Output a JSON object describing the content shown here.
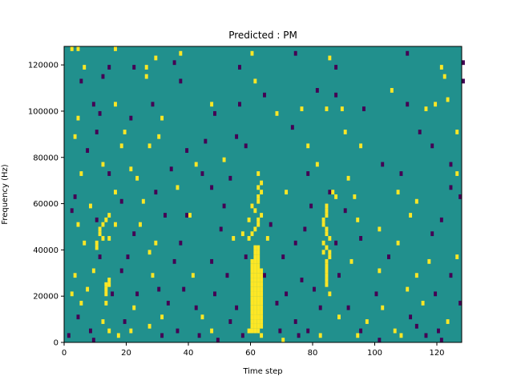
{
  "chart_data": {
    "type": "heatmap",
    "title": "Predicted : PM",
    "xlabel": "Time step",
    "ylabel": "Frequency (Hz)",
    "xlim": [
      0,
      128
    ],
    "ylim": [
      0,
      128000
    ],
    "xticks": [
      0,
      20,
      40,
      60,
      80,
      100,
      120
    ],
    "yticks": [
      0,
      20000,
      40000,
      60000,
      80000,
      100000,
      120000
    ],
    "xtick_labels": [
      "0",
      "20",
      "40",
      "60",
      "80",
      "100",
      "120"
    ],
    "ytick_labels": [
      "0",
      "20000",
      "40000",
      "60000",
      "80000",
      "100000",
      "120000"
    ],
    "grid": false,
    "legend": "none",
    "n_rows": 64,
    "n_cols": 128,
    "value_levels": [
      -1,
      0,
      1
    ],
    "colors": {
      "-1": "#440154",
      "0": "#21908d",
      "1": "#fde725"
    },
    "cells": [
      [
        2,
        63,
        1
      ],
      [
        4,
        63,
        1
      ],
      [
        16,
        63,
        1
      ],
      [
        37,
        62,
        1
      ],
      [
        60,
        62,
        1
      ],
      [
        74,
        62,
        -1
      ],
      [
        85,
        61,
        1
      ],
      [
        110,
        62,
        -1
      ],
      [
        6,
        59,
        1
      ],
      [
        14,
        59,
        -1
      ],
      [
        22,
        59,
        -1
      ],
      [
        26,
        59,
        1
      ],
      [
        29,
        61,
        1
      ],
      [
        35,
        60,
        -1
      ],
      [
        56,
        59,
        -1
      ],
      [
        87,
        59,
        -1
      ],
      [
        121,
        59,
        1
      ],
      [
        128,
        60,
        -1
      ],
      [
        5,
        56,
        -1
      ],
      [
        12,
        57,
        -1
      ],
      [
        26,
        57,
        1
      ],
      [
        37,
        56,
        -1
      ],
      [
        61,
        56,
        1
      ],
      [
        81,
        54,
        -1
      ],
      [
        87,
        53,
        -1
      ],
      [
        105,
        54,
        1
      ],
      [
        122,
        57,
        1
      ],
      [
        128,
        56,
        -1
      ],
      [
        9,
        51,
        -1
      ],
      [
        16,
        51,
        1
      ],
      [
        28,
        51,
        -1
      ],
      [
        47,
        51,
        1
      ],
      [
        56,
        51,
        -1
      ],
      [
        76,
        50,
        1
      ],
      [
        84,
        50,
        1
      ],
      [
        96,
        50,
        -1
      ],
      [
        116,
        50,
        1
      ],
      [
        123,
        52,
        1
      ],
      [
        4,
        48,
        1
      ],
      [
        11,
        49,
        -1
      ],
      [
        21,
        48,
        -1
      ],
      [
        31,
        48,
        1
      ],
      [
        48,
        49,
        -1
      ],
      [
        64,
        53,
        -1
      ],
      [
        68,
        49,
        1
      ],
      [
        89,
        50,
        1
      ],
      [
        110,
        51,
        -1
      ],
      [
        119,
        51,
        1
      ],
      [
        3,
        44,
        1
      ],
      [
        10,
        45,
        -1
      ],
      [
        19,
        45,
        1
      ],
      [
        30,
        44,
        1
      ],
      [
        45,
        43,
        -1
      ],
      [
        55,
        44,
        -1
      ],
      [
        73,
        46,
        -1
      ],
      [
        90,
        45,
        1
      ],
      [
        114,
        45,
        -1
      ],
      [
        126,
        45,
        1
      ],
      [
        7,
        41,
        -1
      ],
      [
        18,
        42,
        1
      ],
      [
        27,
        42,
        1
      ],
      [
        39,
        41,
        -1
      ],
      [
        58,
        42,
        -1
      ],
      [
        78,
        42,
        1
      ],
      [
        95,
        42,
        1
      ],
      [
        118,
        42,
        -1
      ],
      [
        12,
        38,
        1
      ],
      [
        21,
        37,
        1
      ],
      [
        34,
        37,
        -1
      ],
      [
        42,
        38,
        1
      ],
      [
        51,
        39,
        1
      ],
      [
        81,
        38,
        1
      ],
      [
        102,
        38,
        -1
      ],
      [
        124,
        38,
        -1
      ],
      [
        5,
        36,
        1
      ],
      [
        14,
        36,
        -1
      ],
      [
        23,
        35,
        1
      ],
      [
        44,
        36,
        -1
      ],
      [
        53,
        35,
        -1
      ],
      [
        62,
        36,
        1
      ],
      [
        78,
        36,
        -1
      ],
      [
        91,
        35,
        1
      ],
      [
        108,
        36,
        -1
      ],
      [
        126,
        36,
        1
      ],
      [
        3,
        31,
        -1
      ],
      [
        16,
        32,
        1
      ],
      [
        29,
        32,
        -1
      ],
      [
        36,
        33,
        1
      ],
      [
        47,
        33,
        -1
      ],
      [
        71,
        32,
        1
      ],
      [
        85,
        32,
        -1
      ],
      [
        93,
        31,
        1
      ],
      [
        107,
        32,
        1
      ],
      [
        124,
        33,
        -1
      ],
      [
        2,
        28,
        -1
      ],
      [
        8,
        29,
        1
      ],
      [
        18,
        30,
        -1
      ],
      [
        25,
        30,
        1
      ],
      [
        39,
        27,
        -1
      ],
      [
        51,
        29,
        -1
      ],
      [
        59,
        26,
        1
      ],
      [
        79,
        29,
        -1
      ],
      [
        90,
        28,
        -1
      ],
      [
        113,
        30,
        1
      ],
      [
        127,
        31,
        -1
      ],
      [
        4,
        25,
        1
      ],
      [
        10,
        26,
        -1
      ],
      [
        16,
        25,
        1
      ],
      [
        24,
        25,
        1
      ],
      [
        32,
        27,
        -1
      ],
      [
        40,
        27,
        1
      ],
      [
        50,
        24,
        -1
      ],
      [
        57,
        23,
        1
      ],
      [
        66,
        25,
        -1
      ],
      [
        77,
        24,
        -1
      ],
      [
        94,
        26,
        1
      ],
      [
        101,
        24,
        1
      ],
      [
        111,
        27,
        1
      ],
      [
        121,
        26,
        -1
      ],
      [
        6,
        21,
        1
      ],
      [
        14,
        22,
        1
      ],
      [
        22,
        23,
        -1
      ],
      [
        29,
        21,
        1
      ],
      [
        37,
        21,
        -1
      ],
      [
        54,
        22,
        1
      ],
      [
        65,
        22,
        1
      ],
      [
        74,
        21,
        -1
      ],
      [
        87,
        21,
        -1
      ],
      [
        95,
        22,
        -1
      ],
      [
        107,
        21,
        1
      ],
      [
        118,
        23,
        -1
      ],
      [
        11,
        18,
        -1
      ],
      [
        20,
        18,
        -1
      ],
      [
        27,
        19,
        1
      ],
      [
        35,
        17,
        -1
      ],
      [
        47,
        17,
        -1
      ],
      [
        58,
        18,
        -1
      ],
      [
        70,
        18,
        -1
      ],
      [
        83,
        19,
        1
      ],
      [
        92,
        17,
        1
      ],
      [
        104,
        18,
        -1
      ],
      [
        117,
        17,
        1
      ],
      [
        126,
        18,
        1
      ],
      [
        3,
        14,
        1
      ],
      [
        9,
        15,
        1
      ],
      [
        18,
        15,
        -1
      ],
      [
        28,
        14,
        1
      ],
      [
        41,
        14,
        1
      ],
      [
        52,
        14,
        -1
      ],
      [
        64,
        14,
        -1
      ],
      [
        76,
        13,
        -1
      ],
      [
        88,
        14,
        -1
      ],
      [
        101,
        15,
        1
      ],
      [
        113,
        14,
        1
      ],
      [
        124,
        14,
        -1
      ],
      [
        2,
        10,
        1
      ],
      [
        7,
        11,
        1
      ],
      [
        15,
        10,
        -1
      ],
      [
        23,
        10,
        -1
      ],
      [
        30,
        11,
        -1
      ],
      [
        38,
        11,
        -1
      ],
      [
        48,
        10,
        -1
      ],
      [
        71,
        10,
        -1
      ],
      [
        80,
        11,
        -1
      ],
      [
        85,
        10,
        1
      ],
      [
        100,
        10,
        -1
      ],
      [
        110,
        11,
        1
      ],
      [
        119,
        10,
        -1
      ],
      [
        5,
        8,
        1
      ],
      [
        13,
        8,
        1
      ],
      [
        22,
        7,
        1
      ],
      [
        33,
        8,
        -1
      ],
      [
        42,
        7,
        -1
      ],
      [
        55,
        7,
        -1
      ],
      [
        68,
        8,
        -1
      ],
      [
        82,
        7,
        -1
      ],
      [
        91,
        7,
        -1
      ],
      [
        102,
        7,
        1
      ],
      [
        115,
        8,
        1
      ],
      [
        127,
        8,
        -1
      ],
      [
        4,
        5,
        -1
      ],
      [
        12,
        4,
        1
      ],
      [
        19,
        4,
        -1
      ],
      [
        31,
        5,
        1
      ],
      [
        44,
        5,
        1
      ],
      [
        53,
        4,
        -1
      ],
      [
        61,
        5,
        1
      ],
      [
        74,
        4,
        -1
      ],
      [
        88,
        5,
        1
      ],
      [
        97,
        4,
        1
      ],
      [
        111,
        5,
        -1
      ],
      [
        123,
        4,
        1
      ],
      [
        8,
        2,
        -1
      ],
      [
        14,
        2,
        1
      ],
      [
        21,
        2,
        1
      ],
      [
        27,
        3,
        1
      ],
      [
        36,
        2,
        -1
      ],
      [
        47,
        2,
        1
      ],
      [
        59,
        2,
        1
      ],
      [
        69,
        2,
        -1
      ],
      [
        78,
        2,
        -1
      ],
      [
        95,
        2,
        -1
      ],
      [
        106,
        2,
        1
      ],
      [
        113,
        3,
        -1
      ],
      [
        120,
        2,
        -1
      ],
      [
        1,
        1,
        -1
      ],
      [
        9,
        0,
        -1
      ],
      [
        17,
        1,
        1
      ],
      [
        31,
        1,
        -1
      ],
      [
        43,
        1,
        -1
      ],
      [
        49,
        0,
        -1
      ],
      [
        57,
        1,
        -1
      ],
      [
        63,
        1,
        1
      ],
      [
        70,
        0,
        1
      ],
      [
        75,
        1,
        -1
      ],
      [
        82,
        1,
        1
      ],
      [
        94,
        1,
        1
      ],
      [
        101,
        0,
        -1
      ],
      [
        108,
        1,
        1
      ],
      [
        116,
        1,
        -1
      ],
      [
        121,
        0,
        -1
      ],
      [
        13,
        12,
        1
      ],
      [
        13,
        11,
        1
      ],
      [
        13,
        10,
        1
      ],
      [
        14,
        12,
        1
      ],
      [
        14,
        13,
        1
      ],
      [
        14,
        27,
        1
      ],
      [
        13,
        26,
        1
      ],
      [
        12,
        25,
        1
      ],
      [
        11,
        24,
        1
      ],
      [
        11,
        23,
        1
      ],
      [
        12,
        22,
        1
      ],
      [
        10,
        21,
        1
      ],
      [
        10,
        20,
        1
      ],
      [
        60,
        2,
        1
      ],
      [
        60,
        3,
        1
      ],
      [
        60,
        4,
        1
      ],
      [
        60,
        5,
        1
      ],
      [
        60,
        6,
        1
      ],
      [
        60,
        7,
        1
      ],
      [
        60,
        8,
        1
      ],
      [
        60,
        9,
        1
      ],
      [
        60,
        10,
        1
      ],
      [
        60,
        11,
        1
      ],
      [
        60,
        12,
        1
      ],
      [
        60,
        13,
        1
      ],
      [
        60,
        14,
        1
      ],
      [
        60,
        15,
        1
      ],
      [
        60,
        16,
        1
      ],
      [
        60,
        17,
        1
      ],
      [
        61,
        2,
        1
      ],
      [
        61,
        3,
        1
      ],
      [
        61,
        4,
        1
      ],
      [
        61,
        5,
        1
      ],
      [
        61,
        6,
        1
      ],
      [
        61,
        7,
        1
      ],
      [
        61,
        8,
        1
      ],
      [
        61,
        9,
        1
      ],
      [
        61,
        10,
        1
      ],
      [
        61,
        11,
        1
      ],
      [
        61,
        12,
        1
      ],
      [
        61,
        13,
        1
      ],
      [
        61,
        14,
        1
      ],
      [
        61,
        15,
        1
      ],
      [
        61,
        16,
        1
      ],
      [
        61,
        17,
        1
      ],
      [
        61,
        18,
        1
      ],
      [
        61,
        19,
        1
      ],
      [
        61,
        20,
        1
      ],
      [
        62,
        2,
        1
      ],
      [
        62,
        3,
        1
      ],
      [
        62,
        4,
        1
      ],
      [
        62,
        5,
        1
      ],
      [
        62,
        6,
        1
      ],
      [
        62,
        7,
        1
      ],
      [
        62,
        8,
        1
      ],
      [
        62,
        9,
        1
      ],
      [
        62,
        10,
        1
      ],
      [
        62,
        11,
        1
      ],
      [
        62,
        12,
        1
      ],
      [
        62,
        13,
        1
      ],
      [
        62,
        14,
        1
      ],
      [
        62,
        15,
        1
      ],
      [
        62,
        16,
        1
      ],
      [
        62,
        17,
        1
      ],
      [
        62,
        18,
        1
      ],
      [
        62,
        19,
        1
      ],
      [
        62,
        20,
        1
      ],
      [
        63,
        3,
        1
      ],
      [
        63,
        4,
        1
      ],
      [
        63,
        5,
        1
      ],
      [
        63,
        6,
        1
      ],
      [
        63,
        7,
        1
      ],
      [
        63,
        8,
        1
      ],
      [
        63,
        9,
        1
      ],
      [
        63,
        10,
        1
      ],
      [
        63,
        11,
        1
      ],
      [
        63,
        12,
        1
      ],
      [
        63,
        13,
        1
      ],
      [
        63,
        14,
        1
      ],
      [
        63,
        15,
        1
      ],
      [
        59,
        22,
        1
      ],
      [
        60,
        23,
        1
      ],
      [
        61,
        24,
        1
      ],
      [
        62,
        25,
        1
      ],
      [
        62,
        26,
        1
      ],
      [
        63,
        27,
        1
      ],
      [
        61,
        28,
        1
      ],
      [
        60,
        29,
        1
      ],
      [
        84,
        12,
        1
      ],
      [
        84,
        13,
        1
      ],
      [
        84,
        14,
        1
      ],
      [
        84,
        15,
        1
      ],
      [
        84,
        16,
        1
      ],
      [
        84,
        17,
        1
      ],
      [
        85,
        18,
        1
      ],
      [
        85,
        19,
        1
      ],
      [
        84,
        20,
        1
      ],
      [
        83,
        21,
        1
      ],
      [
        85,
        22,
        1
      ],
      [
        84,
        23,
        1
      ],
      [
        84,
        24,
        1
      ],
      [
        83,
        25,
        1
      ],
      [
        83,
        26,
        1
      ],
      [
        84,
        27,
        1
      ],
      [
        84,
        28,
        1
      ],
      [
        84,
        29,
        1
      ],
      [
        86,
        32,
        1
      ],
      [
        87,
        31,
        1
      ],
      [
        62,
        30,
        1
      ],
      [
        62,
        31,
        1
      ],
      [
        63,
        32,
        1
      ],
      [
        62,
        33,
        1
      ],
      [
        63,
        34,
        1
      ]
    ]
  }
}
